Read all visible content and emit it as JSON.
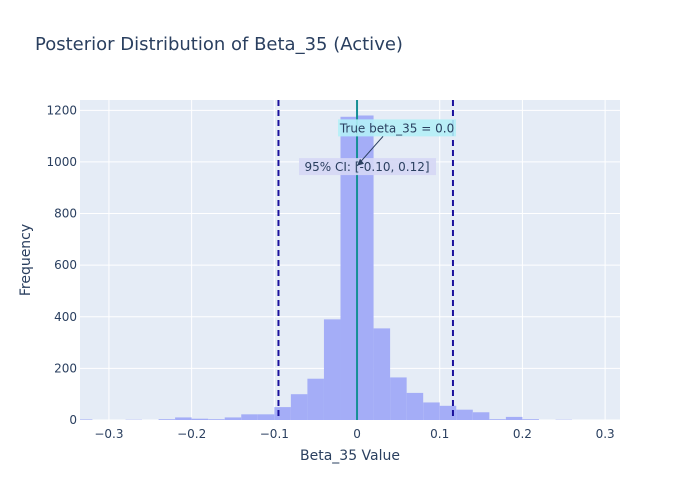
{
  "chart_data": {
    "type": "bar",
    "title": "Posterior Distribution of Beta_35 (Active)",
    "xlabel": "Beta_35 Value",
    "ylabel": "Frequency",
    "xlim": [
      -0.335,
      0.318
    ],
    "ylim": [
      0,
      1240
    ],
    "bin_width": 0.02,
    "xticks": [
      -0.3,
      -0.2,
      -0.1,
      0,
      0.1,
      0.2,
      0.3
    ],
    "xtick_labels": [
      "−0.3",
      "−0.2",
      "−0.1",
      "0",
      "0.1",
      "0.2",
      "0.3"
    ],
    "yticks": [
      0,
      200,
      400,
      600,
      800,
      1000,
      1200
    ],
    "ytick_labels": [
      "0",
      "200",
      "400",
      "600",
      "800",
      "1000",
      "1200"
    ],
    "bins": [
      {
        "x0": -0.34,
        "value": 2
      },
      {
        "x0": -0.28,
        "value": 1
      },
      {
        "x0": -0.24,
        "value": 3
      },
      {
        "x0": -0.22,
        "value": 10
      },
      {
        "x0": -0.2,
        "value": 5
      },
      {
        "x0": -0.18,
        "value": 3
      },
      {
        "x0": -0.16,
        "value": 10
      },
      {
        "x0": -0.14,
        "value": 22
      },
      {
        "x0": -0.12,
        "value": 22
      },
      {
        "x0": -0.1,
        "value": 50
      },
      {
        "x0": -0.08,
        "value": 100
      },
      {
        "x0": -0.06,
        "value": 160
      },
      {
        "x0": -0.04,
        "value": 390
      },
      {
        "x0": -0.02,
        "value": 1175
      },
      {
        "x0": 0.0,
        "value": 1180
      },
      {
        "x0": 0.02,
        "value": 355
      },
      {
        "x0": 0.04,
        "value": 165
      },
      {
        "x0": 0.06,
        "value": 105
      },
      {
        "x0": 0.08,
        "value": 68
      },
      {
        "x0": 0.1,
        "value": 55
      },
      {
        "x0": 0.12,
        "value": 40
      },
      {
        "x0": 0.14,
        "value": 30
      },
      {
        "x0": 0.16,
        "value": 3
      },
      {
        "x0": 0.18,
        "value": 12
      },
      {
        "x0": 0.2,
        "value": 3
      },
      {
        "x0": 0.24,
        "value": 1
      }
    ],
    "bar_color": "#a4adf7",
    "true_value": 0.0,
    "true_value_color": "#168f95",
    "ci": [
      -0.095,
      0.116
    ],
    "ci_color": "#1a0f9c",
    "annotations": {
      "true_label": "True beta_35 = 0.0",
      "true_label_bg": "#b4f0f7",
      "ci_label": "95% CI: [-0.10, 0.12]",
      "ci_label_bg": "#d5d7f5"
    },
    "background": "#e5ecf6",
    "grid": true
  }
}
